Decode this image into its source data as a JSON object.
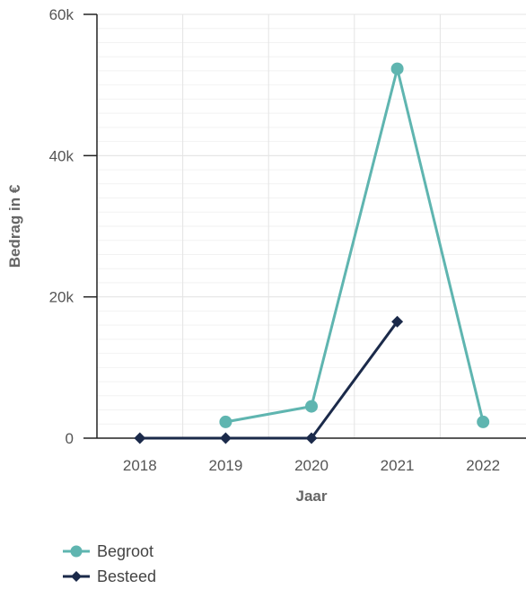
{
  "chart_data": {
    "type": "line",
    "x": [
      "2018",
      "2019",
      "2020",
      "2021",
      "2022"
    ],
    "xlabel": "Jaar",
    "ylabel": "Bedrag in €",
    "ylim": [
      0,
      60000
    ],
    "yticks": [
      0,
      20000,
      40000,
      60000
    ],
    "ytick_labels": [
      "0",
      "20k",
      "40k",
      "60k"
    ],
    "grid": true,
    "legend_position": "bottom-left",
    "series": [
      {
        "name": "Begroot",
        "color": "#5fb5b0",
        "marker": "circle",
        "values": [
          null,
          2300,
          4500,
          52300,
          2300
        ]
      },
      {
        "name": "Besteed",
        "color": "#1b2a4a",
        "marker": "diamond",
        "values": [
          0,
          0,
          0,
          16500,
          null
        ]
      }
    ]
  }
}
